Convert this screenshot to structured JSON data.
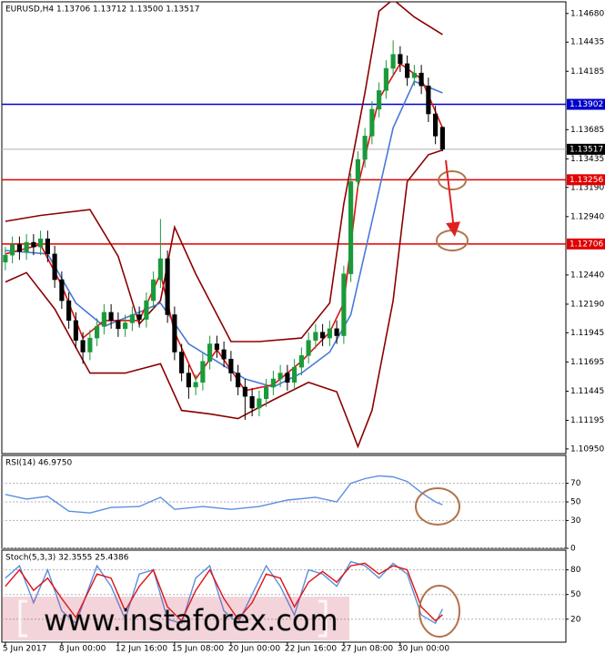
{
  "chart_data": [
    {
      "type": "candlestick",
      "title": "EURUSD,H4  1.13706 1.13712 1.13500 1.13517",
      "open": [
        1.1255,
        1.1261,
        1.127,
        1.1264,
        1.1272,
        1.1268,
        1.1275,
        1.1262,
        1.124,
        1.1222,
        1.1205,
        1.1188,
        1.1178,
        1.119,
        1.12,
        1.1212,
        1.1205,
        1.1198,
        1.1203,
        1.121,
        1.1206,
        1.1222,
        1.124,
        1.1258,
        1.121,
        1.1178,
        1.116,
        1.1148,
        1.1152,
        1.117,
        1.1185,
        1.118,
        1.1172,
        1.116,
        1.1148,
        1.114,
        1.113,
        1.1138,
        1.1148,
        1.1155,
        1.116,
        1.1152,
        1.1165,
        1.1175,
        1.1188,
        1.1195,
        1.119,
        1.1198,
        1.1192,
        1.1245,
        1.1324,
        1.1343,
        1.1363,
        1.1386,
        1.1402,
        1.1421,
        1.1433,
        1.1425,
        1.1413,
        1.1417,
        1.1406,
        1.1382,
        1.13706
      ],
      "high": [
        1.1268,
        1.1277,
        1.1277,
        1.1279,
        1.1279,
        1.1282,
        1.1282,
        1.1269,
        1.1247,
        1.1229,
        1.1212,
        1.1195,
        1.1197,
        1.1207,
        1.1219,
        1.1219,
        1.1212,
        1.121,
        1.1217,
        1.1217,
        1.1229,
        1.1247,
        1.1292,
        1.1265,
        1.1217,
        1.1185,
        1.1167,
        1.1159,
        1.1177,
        1.1192,
        1.1192,
        1.1187,
        1.1179,
        1.1167,
        1.1155,
        1.1147,
        1.1145,
        1.1155,
        1.1162,
        1.1167,
        1.1167,
        1.1172,
        1.1182,
        1.1195,
        1.1202,
        1.1202,
        1.1205,
        1.1205,
        1.1252,
        1.1331,
        1.135,
        1.137,
        1.1393,
        1.1409,
        1.1428,
        1.1445,
        1.144,
        1.1432,
        1.1424,
        1.1424,
        1.1413,
        1.1389,
        1.13712
      ],
      "low": [
        1.1248,
        1.1254,
        1.1257,
        1.1257,
        1.1261,
        1.1261,
        1.1255,
        1.1233,
        1.1215,
        1.1198,
        1.1181,
        1.1168,
        1.1171,
        1.1183,
        1.1193,
        1.1198,
        1.1191,
        1.1191,
        1.1196,
        1.1199,
        1.1199,
        1.1215,
        1.1233,
        1.1203,
        1.1171,
        1.1153,
        1.1138,
        1.1141,
        1.1145,
        1.1163,
        1.1173,
        1.1165,
        1.1153,
        1.1141,
        1.112,
        1.1123,
        1.1123,
        1.1131,
        1.1141,
        1.1148,
        1.1145,
        1.1145,
        1.1158,
        1.1168,
        1.1181,
        1.1183,
        1.1183,
        1.1185,
        1.1185,
        1.1238,
        1.1317,
        1.1336,
        1.1356,
        1.1379,
        1.1395,
        1.1414,
        1.1418,
        1.1406,
        1.1406,
        1.1399,
        1.1375,
        1.1356,
        1.135
      ],
      "close": [
        1.1261,
        1.127,
        1.1264,
        1.1272,
        1.1268,
        1.1275,
        1.1262,
        1.124,
        1.1222,
        1.1205,
        1.1188,
        1.1178,
        1.119,
        1.12,
        1.1212,
        1.1205,
        1.1198,
        1.1203,
        1.121,
        1.1206,
        1.1222,
        1.124,
        1.1258,
        1.121,
        1.1178,
        1.116,
        1.1148,
        1.1152,
        1.117,
        1.1185,
        1.118,
        1.1172,
        1.116,
        1.1148,
        1.114,
        1.113,
        1.1138,
        1.1148,
        1.1155,
        1.116,
        1.1152,
        1.1165,
        1.1175,
        1.1188,
        1.1195,
        1.119,
        1.1198,
        1.1192,
        1.1245,
        1.1324,
        1.1343,
        1.1363,
        1.1386,
        1.1402,
        1.1421,
        1.1433,
        1.1425,
        1.1413,
        1.1417,
        1.1406,
        1.1382,
        1.1363,
        1.13517
      ],
      "up_color": "#1a9a3a",
      "down_color": "#000000",
      "overlays": [
        {
          "color": "#8b0000",
          "x": [
            0,
            5,
            12,
            16,
            19,
            22,
            24,
            27,
            32,
            36,
            42,
            46,
            48,
            51,
            53,
            55,
            58,
            62
          ],
          "values": [
            1.129,
            1.1295,
            1.13,
            1.126,
            1.1202,
            1.1222,
            1.1285,
            1.1245,
            1.1187,
            1.1187,
            1.119,
            1.122,
            1.1305,
            1.14,
            1.147,
            1.148,
            1.1465,
            1.145
          ]
        },
        {
          "color": "#8b0000",
          "x": [
            0,
            3,
            7,
            12,
            17,
            22,
            25,
            29,
            33,
            38,
            43,
            47,
            49,
            50,
            52,
            55,
            57,
            60,
            62
          ],
          "values": [
            1.1238,
            1.1246,
            1.1215,
            1.116,
            1.116,
            1.1168,
            1.1128,
            1.1125,
            1.1121,
            1.1137,
            1.1152,
            1.1144,
            1.1113,
            1.1097,
            1.1128,
            1.1222,
            1.1324,
            1.1347,
            1.1351
          ]
        },
        {
          "color": "#4a78d8",
          "x": [
            0,
            6,
            10,
            14,
            19,
            22,
            26,
            30,
            34,
            38,
            42,
            46,
            49,
            52,
            55,
            58,
            62
          ],
          "values": [
            1.1265,
            1.1262,
            1.122,
            1.12,
            1.1212,
            1.122,
            1.1185,
            1.117,
            1.1155,
            1.1148,
            1.116,
            1.1178,
            1.121,
            1.129,
            1.137,
            1.141,
            1.14
          ]
        },
        {
          "color": "#e01010",
          "x": [
            0,
            5,
            8,
            11,
            14,
            19,
            22,
            24,
            27,
            30,
            34,
            38,
            42,
            46,
            48,
            50,
            53,
            56,
            59,
            62
          ],
          "values": [
            1.1262,
            1.127,
            1.1235,
            1.119,
            1.1205,
            1.1205,
            1.1245,
            1.1195,
            1.1155,
            1.118,
            1.1145,
            1.115,
            1.117,
            1.1195,
            1.122,
            1.132,
            1.1395,
            1.1425,
            1.1412,
            1.137
          ]
        }
      ],
      "hlines": [
        {
          "value": 1.13902,
          "color": "#0000cc"
        },
        {
          "value": 1.13256,
          "color": "#e00000"
        },
        {
          "value": 1.12706,
          "color": "#e00000"
        }
      ],
      "xlim": [
        -0.5,
        79.5
      ],
      "ylim": [
        1.1091,
        1.1478
      ],
      "yticks": [
        {
          "value": 1.1468,
          "label": "1.14680"
        },
        {
          "value": 1.14435,
          "label": "1.14435"
        },
        {
          "value": 1.14185,
          "label": "1.14185"
        },
        {
          "value": 1.13685,
          "label": "1.13685"
        },
        {
          "value": 1.13435,
          "label": "1.13435"
        },
        {
          "value": 1.1319,
          "label": "1.13190"
        },
        {
          "value": 1.1294,
          "label": "1.12940"
        },
        {
          "value": 1.1244,
          "label": "1.12440"
        },
        {
          "value": 1.1219,
          "label": "1.12190"
        },
        {
          "value": 1.11945,
          "label": "1.11945"
        },
        {
          "value": 1.11695,
          "label": "1.11695"
        },
        {
          "value": 1.11445,
          "label": "1.11445"
        },
        {
          "value": 1.11195,
          "label": "1.11195"
        },
        {
          "value": 1.1095,
          "label": "1.10950"
        }
      ],
      "xticks": [
        {
          "value": 0,
          "label": "5 Jun 2017"
        },
        {
          "value": 8,
          "label": "8 Jun 00:00"
        },
        {
          "value": 16,
          "label": "12 Jun 16:00"
        },
        {
          "value": 24,
          "label": "15 Jun 08:00"
        },
        {
          "value": 32,
          "label": "20 Jun 00:00"
        },
        {
          "value": 40,
          "label": "22 Jun 16:00"
        },
        {
          "value": 48,
          "label": "27 Jun 08:00"
        },
        {
          "value": 56,
          "label": "30 Jun 00:00"
        }
      ],
      "watermark": "www.instaforex.com"
    },
    {
      "type": "line",
      "title": "RSI(14) 46.9750",
      "xlim": [
        -0.5,
        79.5
      ],
      "ylim": [
        0,
        100
      ],
      "yticks": [
        70,
        50,
        30,
        0
      ],
      "grid": true,
      "series": [
        {
          "color": "#5b8fe0",
          "x": [
            0,
            3,
            6,
            9,
            12,
            15,
            19,
            22,
            24,
            28,
            32,
            36,
            40,
            44,
            47,
            49,
            51,
            53,
            55,
            57,
            59,
            61,
            62
          ],
          "values": [
            58,
            53,
            56,
            40,
            38,
            44,
            45,
            55,
            42,
            45,
            42,
            45,
            52,
            55,
            50,
            70,
            75,
            78,
            77,
            72,
            60,
            50,
            46.975
          ]
        }
      ]
    },
    {
      "type": "line",
      "title": "Stoch(5,3,3) 32.3555 25.4386",
      "xlim": [
        -0.5,
        79.5
      ],
      "ylim": [
        -8,
        104
      ],
      "yticks": [
        80,
        50,
        20
      ],
      "grid": true,
      "series": [
        {
          "color": "#5b8fe0",
          "x": [
            0,
            2,
            4,
            6,
            8,
            10,
            13,
            15,
            17,
            19,
            21,
            23,
            25,
            27,
            29,
            31,
            33,
            35,
            37,
            39,
            41,
            43,
            45,
            47,
            49,
            51,
            53,
            55,
            57,
            59,
            61,
            62
          ],
          "values": [
            70,
            85,
            40,
            80,
            30,
            15,
            85,
            60,
            20,
            75,
            80,
            20,
            15,
            70,
            85,
            30,
            15,
            50,
            85,
            60,
            25,
            80,
            75,
            60,
            90,
            85,
            70,
            88,
            75,
            25,
            15,
            32.3555
          ]
        },
        {
          "color": "#e01010",
          "x": [
            0,
            2,
            4,
            6,
            8,
            10,
            13,
            15,
            17,
            19,
            21,
            23,
            25,
            27,
            29,
            31,
            33,
            35,
            37,
            39,
            41,
            43,
            45,
            47,
            49,
            51,
            53,
            55,
            57,
            59,
            61,
            62
          ],
          "values": [
            60,
            80,
            55,
            70,
            45,
            22,
            75,
            70,
            30,
            60,
            80,
            35,
            18,
            55,
            80,
            45,
            20,
            40,
            75,
            70,
            35,
            65,
            78,
            65,
            85,
            88,
            75,
            85,
            80,
            35,
            18,
            25.4386
          ]
        }
      ]
    }
  ]
}
